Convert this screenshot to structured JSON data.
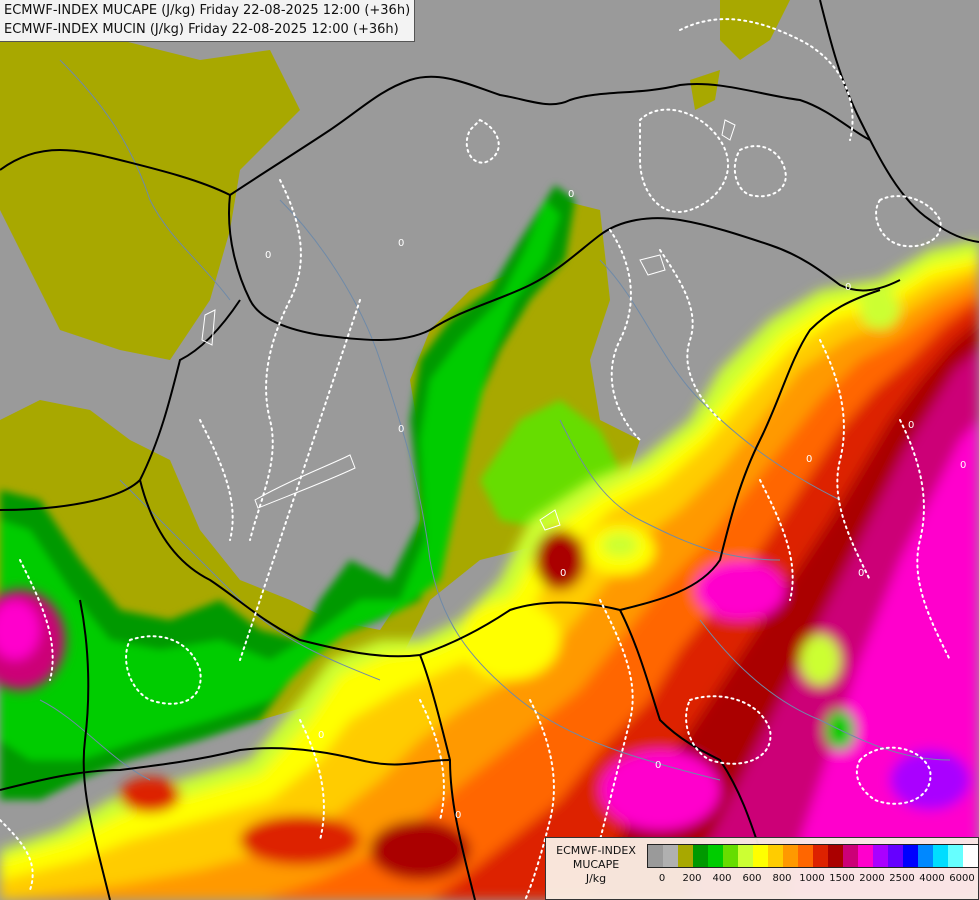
{
  "title": {
    "line1": "ECMWF-INDEX MUCAPE (J/kg) Friday 22-08-2025 12:00 (+36h)",
    "line2": "ECMWF-INDEX MUCIN (J/kg) Friday 22-08-2025 12:00 (+36h)"
  },
  "legend": {
    "model": "ECMWF-INDEX",
    "variable": "MUCAPE",
    "unit": "J/kg",
    "colors": [
      "#9a9a9a",
      "#b0b0b0",
      "#a8a800",
      "#009900",
      "#00cc00",
      "#66dd00",
      "#ccff33",
      "#ffff00",
      "#ffcc00",
      "#ff9900",
      "#ff6600",
      "#dd2200",
      "#aa0000",
      "#cc0077",
      "#ff00cc",
      "#aa00ff",
      "#6600ff",
      "#0000ff",
      "#0088ff",
      "#00ddff",
      "#66ffff",
      "#ffffff"
    ],
    "ticks": [
      {
        "label": "0",
        "index": 1
      },
      {
        "label": "200",
        "index": 3
      },
      {
        "label": "400",
        "index": 5
      },
      {
        "label": "600",
        "index": 7
      },
      {
        "label": "800",
        "index": 9
      },
      {
        "label": "1000",
        "index": 11
      },
      {
        "label": "1500",
        "index": 13
      },
      {
        "label": "2000",
        "index": 15
      },
      {
        "label": "2500",
        "index": 17
      },
      {
        "label": "4000",
        "index": 19
      },
      {
        "label": "6000",
        "index": 21
      }
    ]
  },
  "map": {
    "background_color": "#9a9a9a",
    "cin_contour_label": "0",
    "border_color": "#000000",
    "river_color": "#6f8aa8"
  }
}
